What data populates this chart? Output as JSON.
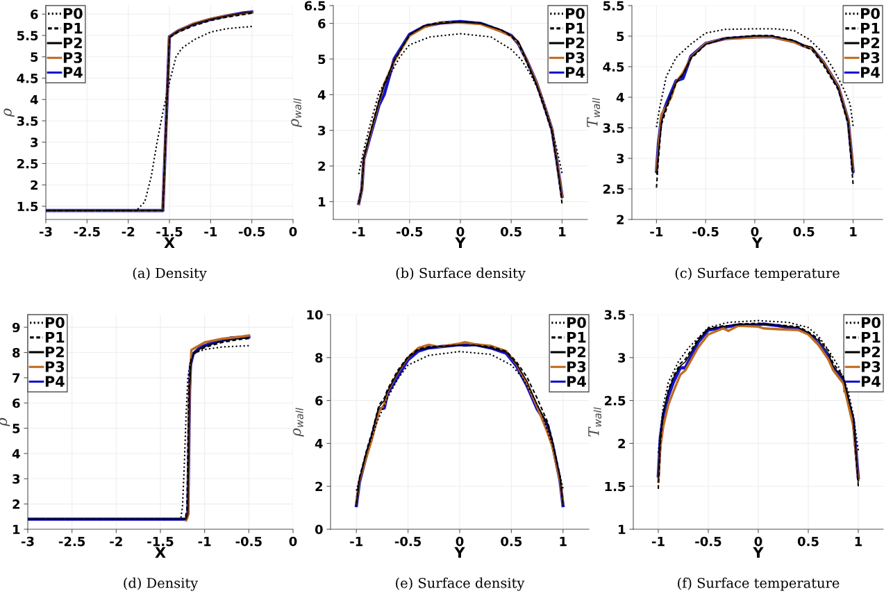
{
  "chart_data": [
    {
      "type": "line",
      "title": "(a) Density",
      "xlabel": "X",
      "ylabel": "ρ",
      "xlim": [
        -3,
        0
      ],
      "ylim": [
        1.19,
        6.2
      ],
      "xticks": [
        -3,
        -2.5,
        -2,
        -1.5,
        -1,
        -0.5,
        0
      ],
      "yticks": [
        1.5,
        2,
        2.5,
        3,
        3.5,
        4,
        4.5,
        5,
        5.5,
        6
      ],
      "grid": true,
      "legend": "top left",
      "series": [
        {
          "name": "P0",
          "color": "#000000",
          "line_style": "dotted",
          "x": [
            -3,
            -1.9,
            -1.8,
            -1.72,
            -1.65,
            -1.58,
            -1.5,
            -1.42,
            -1.35,
            -1.2,
            -1.0,
            -0.8,
            -0.5
          ],
          "values": [
            1.4,
            1.4,
            1.6,
            2.2,
            3.0,
            3.7,
            4.4,
            5.0,
            5.2,
            5.4,
            5.58,
            5.66,
            5.71
          ]
        },
        {
          "name": "P1",
          "color": "#000000",
          "line_style": "dashed",
          "x": [
            -3,
            -1.58,
            -1.5,
            -1.4,
            -1.2,
            -1.0,
            -0.8,
            -0.6,
            -0.5
          ],
          "values": [
            1.4,
            1.4,
            5.45,
            5.57,
            5.73,
            5.85,
            5.93,
            5.99,
            6.02
          ]
        },
        {
          "name": "P2",
          "color": "#000000",
          "line_style": "solid",
          "x": [
            -3,
            -1.58,
            -1.5,
            -1.4,
            -1.2,
            -1.0,
            -0.8,
            -0.6,
            -0.5
          ],
          "values": [
            1.4,
            1.4,
            5.47,
            5.6,
            5.77,
            5.88,
            5.96,
            6.03,
            6.05
          ]
        },
        {
          "name": "P3",
          "color": "#c06a1e",
          "line_style": "solid",
          "x": [
            -3,
            -1.58,
            -1.5,
            -1.4,
            -1.2,
            -1.0,
            -0.8,
            -0.6,
            -0.5
          ],
          "values": [
            1.4,
            1.4,
            5.47,
            5.6,
            5.78,
            5.89,
            5.96,
            6.02,
            6.04
          ]
        },
        {
          "name": "P4",
          "color": "#1414cc",
          "line_style": "solid",
          "x": [
            -3,
            -1.58,
            -1.5,
            -1.4,
            -1.2,
            -1.0,
            -0.8,
            -0.6,
            -0.5
          ],
          "values": [
            1.4,
            1.4,
            5.47,
            5.6,
            5.77,
            5.88,
            5.96,
            6.03,
            6.05
          ]
        }
      ]
    },
    {
      "type": "line",
      "title": "(b) Surface density",
      "xlabel": "Y",
      "ylabel": "ρ$_{wall}$",
      "xlim": [
        -1.25,
        1.25
      ],
      "ylim": [
        0.5,
        6.5
      ],
      "xticks": [
        -1,
        -0.5,
        0,
        0.5,
        1
      ],
      "yticks": [
        1,
        2,
        3,
        4,
        5,
        6,
        6.5
      ],
      "grid": true,
      "legend": "top right",
      "series": [
        {
          "name": "P0",
          "color": "#000000",
          "line_style": "dotted",
          "x": [
            -1,
            -0.95,
            -0.9,
            -0.8,
            -0.7,
            -0.6,
            -0.5,
            -0.3,
            0,
            0.3,
            0.5,
            0.6,
            0.7,
            0.8,
            0.9,
            0.95,
            1
          ],
          "values": [
            1.77,
            2.45,
            3.03,
            4.07,
            4.52,
            5.04,
            5.4,
            5.62,
            5.71,
            5.62,
            5.27,
            4.98,
            4.52,
            3.94,
            3.03,
            2.45,
            1.8
          ]
        },
        {
          "name": "P1",
          "color": "#000000",
          "line_style": "dashed",
          "x": [
            -1,
            -0.97,
            -0.95,
            -0.9,
            -0.8,
            -0.75,
            -0.65,
            -0.5,
            -0.35,
            -0.2,
            0,
            0.2,
            0.4,
            0.5,
            0.57,
            0.65,
            0.75,
            0.85,
            0.9,
            0.95,
            1
          ],
          "values": [
            0.95,
            1.4,
            2.25,
            2.8,
            3.85,
            4.3,
            4.95,
            5.68,
            5.95,
            6.02,
            6.05,
            6.01,
            5.82,
            5.64,
            5.45,
            4.92,
            4.25,
            3.4,
            2.95,
            2.05,
            0.95
          ]
        },
        {
          "name": "P2",
          "color": "#000000",
          "line_style": "solid",
          "x": [
            -1,
            -0.97,
            -0.95,
            -0.9,
            -0.8,
            -0.75,
            -0.65,
            -0.5,
            -0.35,
            -0.2,
            0,
            0.2,
            0.4,
            0.5,
            0.57,
            0.65,
            0.75,
            0.85,
            0.9,
            0.95,
            1
          ],
          "values": [
            0.95,
            1.34,
            2.2,
            2.75,
            3.8,
            4.25,
            4.98,
            5.68,
            5.93,
            6.0,
            6.04,
            6.0,
            5.82,
            5.66,
            5.5,
            4.98,
            4.3,
            3.45,
            3.0,
            2.1,
            1.1
          ]
        },
        {
          "name": "P3",
          "color": "#c06a1e",
          "line_style": "solid",
          "x": [
            -1,
            -0.97,
            -0.95,
            -0.9,
            -0.8,
            -0.75,
            -0.65,
            -0.5,
            -0.35,
            -0.2,
            0,
            0.2,
            0.4,
            0.5,
            0.57,
            0.65,
            0.75,
            0.85,
            0.9,
            0.95,
            1
          ],
          "values": [
            0.95,
            1.34,
            2.19,
            2.75,
            3.8,
            4.3,
            4.95,
            5.65,
            5.9,
            6.02,
            6.02,
            5.98,
            5.77,
            5.65,
            5.45,
            4.98,
            4.33,
            3.48,
            3.03,
            2.12,
            1.15
          ]
        },
        {
          "name": "P4",
          "color": "#1414cc",
          "line_style": "solid",
          "x": [
            -1,
            -0.97,
            -0.95,
            -0.9,
            -0.8,
            -0.75,
            -0.65,
            -0.5,
            -0.35,
            -0.2,
            0,
            0.2,
            0.4,
            0.5,
            0.57,
            0.65,
            0.75,
            0.85,
            0.9,
            0.95,
            1
          ],
          "values": [
            0.95,
            1.34,
            2.19,
            2.71,
            3.71,
            4.0,
            5.01,
            5.69,
            5.92,
            6.01,
            6.05,
            6.0,
            5.79,
            5.66,
            5.43,
            4.98,
            4.33,
            3.48,
            3.03,
            2.12,
            1.15
          ]
        }
      ]
    },
    {
      "type": "line",
      "title": "(c) Surface temperature",
      "xlabel": "Y",
      "ylabel": "T$_{wall}$",
      "xlim": [
        -1.25,
        1.3
      ],
      "ylim": [
        2,
        5.5
      ],
      "xticks": [
        -1,
        -0.5,
        0,
        0.5,
        1
      ],
      "yticks": [
        2,
        2.5,
        3,
        3.5,
        4,
        4.5,
        5,
        5.5
      ],
      "grid": true,
      "legend": "top right",
      "series": [
        {
          "name": "P0",
          "color": "#000000",
          "line_style": "dotted",
          "x": [
            -1,
            -0.97,
            -0.9,
            -0.8,
            -0.65,
            -0.5,
            -0.3,
            0,
            0.2,
            0.4,
            0.55,
            0.7,
            0.8,
            0.9,
            0.97,
            1
          ],
          "values": [
            3.51,
            3.81,
            4.34,
            4.65,
            4.87,
            5.05,
            5.11,
            5.12,
            5.12,
            5.09,
            4.95,
            4.72,
            4.46,
            4.15,
            3.89,
            3.53
          ]
        },
        {
          "name": "P1",
          "color": "#000000",
          "line_style": "dashed",
          "x": [
            -1,
            -0.98,
            -0.95,
            -0.9,
            -0.85,
            -0.8,
            -0.73,
            -0.65,
            -0.5,
            -0.3,
            0,
            0.17,
            0.4,
            0.5,
            0.58,
            0.7,
            0.85,
            0.95,
            1
          ],
          "values": [
            2.52,
            3.0,
            3.55,
            3.8,
            4.03,
            4.23,
            4.37,
            4.63,
            4.86,
            4.97,
            5.01,
            5.01,
            4.93,
            4.83,
            4.78,
            4.52,
            4.12,
            3.55,
            2.58
          ]
        },
        {
          "name": "P2",
          "color": "#000000",
          "line_style": "solid",
          "x": [
            -1,
            -0.98,
            -0.95,
            -0.9,
            -0.85,
            -0.8,
            -0.73,
            -0.65,
            -0.5,
            -0.3,
            0,
            0.17,
            0.4,
            0.5,
            0.58,
            0.7,
            0.85,
            0.95,
            1
          ],
          "values": [
            2.75,
            3.1,
            3.6,
            3.85,
            4.05,
            4.25,
            4.38,
            4.65,
            4.87,
            4.96,
            5.0,
            5.0,
            4.92,
            4.85,
            4.82,
            4.55,
            4.15,
            3.6,
            2.75
          ]
        },
        {
          "name": "P3",
          "color": "#c06a1e",
          "line_style": "solid",
          "x": [
            -1,
            -0.98,
            -0.95,
            -0.9,
            -0.85,
            -0.8,
            -0.73,
            -0.65,
            -0.5,
            -0.3,
            0,
            0.17,
            0.4,
            0.5,
            0.58,
            0.7,
            0.85,
            0.95,
            1
          ],
          "values": [
            2.8,
            3.15,
            3.72,
            3.85,
            4.0,
            4.25,
            4.4,
            4.65,
            4.88,
            4.96,
            4.98,
            4.99,
            4.9,
            4.84,
            4.8,
            4.57,
            4.17,
            3.62,
            2.8
          ]
        },
        {
          "name": "P4",
          "color": "#1414cc",
          "line_style": "solid",
          "x": [
            -1,
            -0.98,
            -0.95,
            -0.9,
            -0.85,
            -0.8,
            -0.73,
            -0.65,
            -0.5,
            -0.3,
            0,
            0.17,
            0.4,
            0.5,
            0.58,
            0.7,
            0.85,
            0.95,
            1
          ],
          "values": [
            2.79,
            3.24,
            3.66,
            3.89,
            4.08,
            4.27,
            4.31,
            4.67,
            4.88,
            4.96,
            4.99,
            4.99,
            4.91,
            4.84,
            4.8,
            4.57,
            4.17,
            3.62,
            2.79
          ]
        }
      ]
    },
    {
      "type": "line",
      "title": "(d) Density",
      "xlabel": "X",
      "ylabel": "ρ",
      "xlim": [
        -3,
        0
      ],
      "ylim": [
        1,
        9.5
      ],
      "xticks": [
        -3,
        -2.5,
        -2,
        -1.5,
        -1,
        -0.5,
        0
      ],
      "yticks": [
        1,
        2,
        3,
        4,
        5,
        6,
        7,
        8,
        9
      ],
      "grid": true,
      "legend": "top left",
      "series": [
        {
          "name": "P0",
          "color": "#000000",
          "line_style": "dotted",
          "x": [
            -3,
            -1.27,
            -1.25,
            -1.23,
            -1.21,
            -1.19,
            -1.15,
            -1.1,
            -1.0,
            -0.8,
            -0.5
          ],
          "values": [
            1.4,
            1.4,
            1.9,
            3.5,
            5.5,
            7.0,
            7.8,
            8.0,
            8.12,
            8.22,
            8.27
          ]
        },
        {
          "name": "P1",
          "color": "#000000",
          "line_style": "dashed",
          "x": [
            -3,
            -1.22,
            -1.2,
            -1.19,
            -1.18,
            -1.16,
            -1.12,
            -1.0,
            -0.8,
            -0.6,
            -0.5
          ],
          "values": [
            1.4,
            1.4,
            1.8,
            4,
            6.5,
            7.6,
            7.95,
            8.2,
            8.4,
            8.52,
            8.55
          ]
        },
        {
          "name": "P2",
          "color": "#000000",
          "line_style": "solid",
          "x": [
            -3,
            -1.21,
            -1.19,
            -1.18,
            -1.17,
            -1.15,
            -1.12,
            -1.0,
            -0.8,
            -0.6,
            -0.5
          ],
          "values": [
            1.4,
            1.4,
            1.6,
            4,
            6.5,
            7.7,
            8.0,
            8.25,
            8.45,
            8.55,
            8.57
          ]
        },
        {
          "name": "P3",
          "color": "#c06a1e",
          "line_style": "solid",
          "x": [
            -1.21,
            -1.19,
            -1.18,
            -1.17,
            -1.15,
            -1.1,
            -1.0,
            -0.8,
            -0.6,
            -0.5
          ],
          "values": [
            1.35,
            1.5,
            4,
            6.5,
            8.1,
            8.2,
            8.4,
            8.55,
            8.62,
            8.68
          ]
        },
        {
          "name": "P4",
          "color": "#1414cc",
          "line_style": "solid",
          "x": [
            -3,
            -1.21,
            -1.19,
            -1.18,
            -1.17,
            -1.16,
            -1.13,
            -1.05,
            -0.9,
            -0.7,
            -0.5
          ],
          "values": [
            1.4,
            1.4,
            1.6,
            4,
            6.5,
            7.5,
            7.95,
            8.2,
            8.4,
            8.58,
            8.62
          ]
        }
      ]
    },
    {
      "type": "line",
      "title": "(e) Surface density",
      "xlabel": "Y",
      "ylabel": "ρ$_{wall}$",
      "xlim": [
        -1.25,
        1.25
      ],
      "ylim": [
        0,
        10
      ],
      "xticks": [
        -1,
        -0.5,
        0,
        0.5,
        1
      ],
      "yticks": [
        0,
        2,
        4,
        6,
        8,
        10
      ],
      "grid": true,
      "legend": "top right",
      "series": [
        {
          "name": "P0",
          "color": "#000000",
          "line_style": "dotted",
          "x": [
            -1,
            -0.9,
            -0.8,
            -0.7,
            -0.6,
            -0.5,
            -0.3,
            0,
            0.3,
            0.5,
            0.6,
            0.7,
            0.8,
            0.9,
            1
          ],
          "values": [
            1.8,
            3.6,
            5.0,
            6.1,
            7.0,
            7.65,
            8.1,
            8.28,
            8.15,
            7.65,
            7.1,
            6.3,
            5.3,
            3.9,
            1.9
          ]
        },
        {
          "name": "P1",
          "color": "#000000",
          "line_style": "dashed",
          "x": [
            -1,
            -0.97,
            -0.9,
            -0.85,
            -0.78,
            -0.73,
            -0.7,
            -0.6,
            -0.5,
            -0.4,
            -0.3,
            -0.2,
            0,
            0.05,
            0.15,
            0.3,
            0.45,
            0.55,
            0.65,
            0.75,
            0.85,
            0.9,
            0.97,
            1
          ],
          "values": [
            1.2,
            2.4,
            3.7,
            4.5,
            5.8,
            6.1,
            6.5,
            7.4,
            8.05,
            8.4,
            8.5,
            8.52,
            8.58,
            8.57,
            8.58,
            8.5,
            8.3,
            7.8,
            7.1,
            6.1,
            5.0,
            4.1,
            2.5,
            1.2
          ]
        },
        {
          "name": "P2",
          "color": "#000000",
          "line_style": "solid",
          "x": [
            -1,
            -0.97,
            -0.9,
            -0.85,
            -0.78,
            -0.73,
            -0.7,
            -0.6,
            -0.5,
            -0.4,
            -0.3,
            -0.2,
            0,
            0.05,
            0.15,
            0.3,
            0.45,
            0.55,
            0.65,
            0.75,
            0.85,
            0.9,
            0.97,
            1
          ],
          "values": [
            1.1,
            2.3,
            3.6,
            4.4,
            5.7,
            6.0,
            6.4,
            7.3,
            8.0,
            8.35,
            8.45,
            8.5,
            8.58,
            8.55,
            8.58,
            8.45,
            8.25,
            7.7,
            6.9,
            5.8,
            4.9,
            4.0,
            2.4,
            1.1
          ]
        },
        {
          "name": "P3",
          "color": "#c06a1e",
          "line_style": "solid",
          "x": [
            -1,
            -0.97,
            -0.9,
            -0.85,
            -0.78,
            -0.73,
            -0.7,
            -0.6,
            -0.5,
            -0.4,
            -0.3,
            -0.2,
            0,
            0.05,
            0.15,
            0.3,
            0.45,
            0.55,
            0.65,
            0.75,
            0.85,
            0.9,
            0.97,
            1
          ],
          "values": [
            1.2,
            2.3,
            3.4,
            4.2,
            5.5,
            5.8,
            6.4,
            7.3,
            8.0,
            8.45,
            8.6,
            8.5,
            8.65,
            8.72,
            8.62,
            8.55,
            8.3,
            7.7,
            6.8,
            5.7,
            4.5,
            3.8,
            2.3,
            1.2
          ]
        },
        {
          "name": "P4",
          "color": "#1414cc",
          "line_style": "solid",
          "x": [
            -1,
            -0.97,
            -0.9,
            -0.85,
            -0.78,
            -0.73,
            -0.7,
            -0.6,
            -0.5,
            -0.4,
            -0.3,
            -0.2,
            0,
            0.05,
            0.15,
            0.3,
            0.45,
            0.55,
            0.65,
            0.75,
            0.85,
            0.9,
            0.97,
            1
          ],
          "values": [
            1.1,
            2.2,
            3.5,
            4.3,
            5.6,
            5.65,
            6.3,
            7.1,
            7.9,
            8.3,
            8.45,
            8.5,
            8.6,
            8.58,
            8.6,
            8.45,
            8.2,
            7.6,
            6.7,
            5.6,
            4.85,
            3.9,
            2.3,
            1.1
          ]
        }
      ]
    },
    {
      "type": "line",
      "title": "(f) Surface temperature",
      "xlabel": "Y",
      "ylabel": "T$_{wall}$",
      "xlim": [
        -1.25,
        1.25
      ],
      "ylim": [
        1,
        3.5
      ],
      "xticks": [
        -1,
        -0.5,
        0,
        0.5,
        1
      ],
      "yticks": [
        1,
        1.5,
        2,
        2.5,
        3,
        3.5
      ],
      "grid": true,
      "legend": "top right",
      "series": [
        {
          "name": "P0",
          "color": "#000000",
          "line_style": "dotted",
          "x": [
            -1,
            -0.95,
            -0.9,
            -0.8,
            -0.7,
            -0.5,
            -0.3,
            0,
            0.3,
            0.5,
            0.6,
            0.7,
            0.8,
            0.9,
            0.95,
            1
          ],
          "values": [
            1.89,
            2.44,
            2.71,
            2.95,
            3.11,
            3.35,
            3.41,
            3.43,
            3.41,
            3.35,
            3.25,
            3.09,
            2.9,
            2.6,
            2.33,
            1.92
          ]
        },
        {
          "name": "P1",
          "color": "#000000",
          "line_style": "dashed",
          "x": [
            -1,
            -0.98,
            -0.95,
            -0.9,
            -0.85,
            -0.78,
            -0.73,
            -0.6,
            -0.5,
            -0.35,
            -0.3,
            -0.2,
            0,
            0.05,
            0.2,
            0.4,
            0.5,
            0.6,
            0.7,
            0.75,
            0.85,
            0.9,
            0.95,
            1
          ],
          "values": [
            1.47,
            2.0,
            2.35,
            2.62,
            2.78,
            2.93,
            2.98,
            3.22,
            3.34,
            3.37,
            3.37,
            3.39,
            3.4,
            3.39,
            3.38,
            3.36,
            3.3,
            3.22,
            3.08,
            2.93,
            2.78,
            2.55,
            2.3,
            1.5
          ]
        },
        {
          "name": "P2",
          "color": "#000000",
          "line_style": "solid",
          "x": [
            -1,
            -0.98,
            -0.95,
            -0.9,
            -0.85,
            -0.78,
            -0.73,
            -0.6,
            -0.5,
            -0.35,
            -0.3,
            -0.2,
            0,
            0.05,
            0.2,
            0.4,
            0.5,
            0.6,
            0.7,
            0.75,
            0.85,
            0.9,
            0.95,
            1
          ],
          "values": [
            1.6,
            2.05,
            2.35,
            2.6,
            2.76,
            2.9,
            2.95,
            3.2,
            3.33,
            3.36,
            3.37,
            3.38,
            3.39,
            3.39,
            3.37,
            3.35,
            3.29,
            3.2,
            3.05,
            2.9,
            2.76,
            2.52,
            2.3,
            1.55
          ]
        },
        {
          "name": "P3",
          "color": "#c06a1e",
          "line_style": "solid",
          "x": [
            -1,
            -0.98,
            -0.95,
            -0.9,
            -0.85,
            -0.78,
            -0.73,
            -0.6,
            -0.5,
            -0.35,
            -0.3,
            -0.2,
            0,
            0.05,
            0.2,
            0.4,
            0.5,
            0.6,
            0.7,
            0.75,
            0.85,
            0.9,
            0.95,
            1
          ],
          "values": [
            1.55,
            1.95,
            2.2,
            2.45,
            2.6,
            2.8,
            2.85,
            3.12,
            3.27,
            3.34,
            3.31,
            3.37,
            3.36,
            3.34,
            3.33,
            3.32,
            3.27,
            3.15,
            2.98,
            2.85,
            2.7,
            2.45,
            2.2,
            1.57
          ]
        },
        {
          "name": "P4",
          "color": "#1414cc",
          "line_style": "solid",
          "x": [
            -1,
            -0.98,
            -0.95,
            -0.9,
            -0.85,
            -0.78,
            -0.73,
            -0.6,
            -0.5,
            -0.35,
            -0.3,
            -0.2,
            0,
            0.05,
            0.2,
            0.4,
            0.5,
            0.6,
            0.7,
            0.75,
            0.85,
            0.9,
            0.95,
            1
          ],
          "values": [
            1.62,
            2.06,
            2.33,
            2.55,
            2.71,
            2.88,
            2.88,
            3.18,
            3.32,
            3.35,
            3.36,
            3.38,
            3.38,
            3.39,
            3.37,
            3.33,
            3.28,
            3.16,
            3.01,
            2.87,
            2.74,
            2.49,
            2.27,
            1.6
          ]
        }
      ]
    }
  ]
}
